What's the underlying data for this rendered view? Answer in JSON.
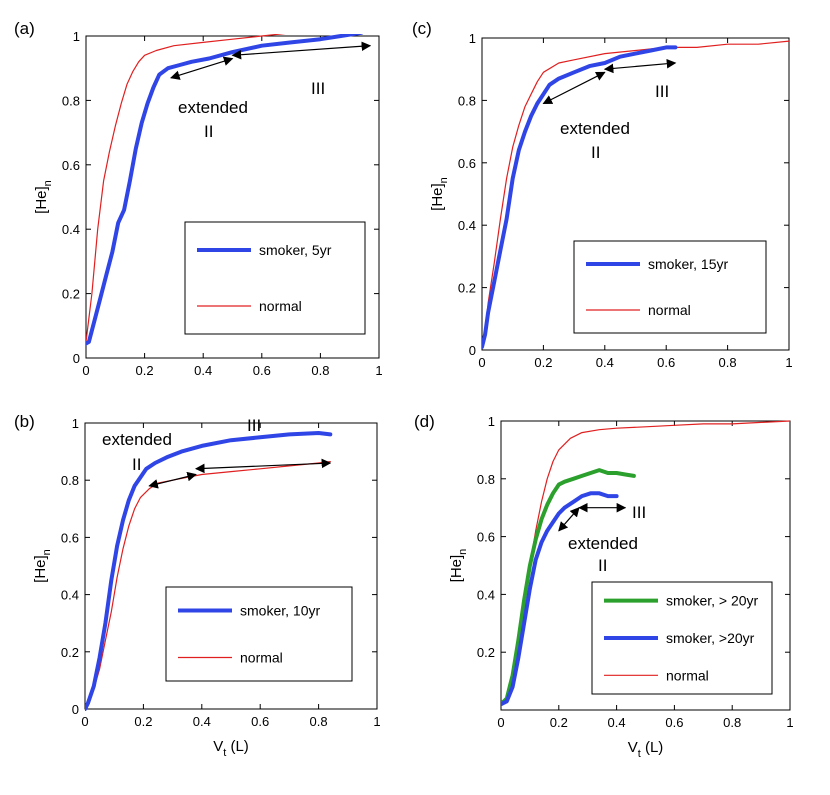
{
  "chart_data": [
    {
      "panel": "(a)",
      "type": "line",
      "xlim": [
        0,
        1
      ],
      "ylim": [
        0,
        1
      ],
      "xticks": [
        "0",
        "0.2",
        "0.4",
        "0.6",
        "0.8",
        "1"
      ],
      "yticks": [
        "0",
        "0.2",
        "0.4",
        "0.6",
        "0.8",
        "1"
      ],
      "ylabel_main": "[He]",
      "ylabel_sub": "n",
      "xlabel_main": "",
      "xlabel_sub": "",
      "legend": [
        "smoker, 5yr",
        "normal"
      ],
      "labels": {
        "extended": "extended",
        "phase2": "II",
        "phase3": "III"
      },
      "series": [
        {
          "name": "smoker, 5yr",
          "color": "#3045e6",
          "width": 4,
          "x": [
            -0.01,
            0.01,
            0.03,
            0.05,
            0.07,
            0.09,
            0.11,
            0.13,
            0.15,
            0.17,
            0.19,
            0.21,
            0.23,
            0.25,
            0.28,
            0.32,
            0.36,
            0.42,
            0.5,
            0.6,
            0.7,
            0.8,
            0.87,
            0.94
          ],
          "y": [
            0.04,
            0.05,
            0.12,
            0.19,
            0.26,
            0.33,
            0.42,
            0.46,
            0.55,
            0.65,
            0.73,
            0.79,
            0.84,
            0.88,
            0.9,
            0.91,
            0.92,
            0.93,
            0.95,
            0.97,
            0.98,
            0.99,
            1.0,
            1.01
          ]
        },
        {
          "name": "normal",
          "color": "#e02020",
          "width": 1.2,
          "x": [
            -0.01,
            0.0,
            0.02,
            0.04,
            0.06,
            0.08,
            0.1,
            0.12,
            0.14,
            0.16,
            0.18,
            0.2,
            0.24,
            0.3,
            0.4,
            0.5,
            0.6,
            0.7,
            0.8,
            0.9,
            1.0
          ],
          "y": [
            0.03,
            0.05,
            0.2,
            0.4,
            0.55,
            0.64,
            0.72,
            0.79,
            0.85,
            0.89,
            0.92,
            0.94,
            0.955,
            0.97,
            0.98,
            0.99,
            1.0,
            1.01,
            1.02,
            1.03,
            1.04
          ]
        }
      ],
      "arrows": [
        [
          0.29,
          0.87,
          0.5,
          0.93
        ],
        [
          0.5,
          0.94,
          0.97,
          0.97
        ]
      ]
    },
    {
      "panel": "(c)",
      "type": "line",
      "xlim": [
        0,
        1
      ],
      "ylim": [
        0,
        1
      ],
      "xticks": [
        "0",
        "0.2",
        "0.4",
        "0.6",
        "0.8",
        "1"
      ],
      "yticks": [
        "0",
        "0.2",
        "0.4",
        "0.6",
        "0.8",
        "1"
      ],
      "ylabel_main": "[He]",
      "ylabel_sub": "n",
      "xlabel_main": "",
      "xlabel_sub": "",
      "legend": [
        "smoker, 15yr",
        "normal"
      ],
      "labels": {
        "extended": "extended",
        "phase2": "II",
        "phase3": "III"
      },
      "series": [
        {
          "name": "smoker, 15yr",
          "color": "#3045e6",
          "width": 4,
          "x": [
            0.0,
            0.01,
            0.02,
            0.04,
            0.06,
            0.08,
            0.1,
            0.12,
            0.14,
            0.16,
            0.18,
            0.2,
            0.22,
            0.25,
            0.3,
            0.35,
            0.4,
            0.45,
            0.5,
            0.55,
            0.6,
            0.63
          ],
          "y": [
            0.01,
            0.05,
            0.12,
            0.22,
            0.32,
            0.42,
            0.55,
            0.64,
            0.7,
            0.75,
            0.79,
            0.82,
            0.85,
            0.87,
            0.89,
            0.91,
            0.92,
            0.94,
            0.95,
            0.96,
            0.97,
            0.97
          ]
        },
        {
          "name": "normal",
          "color": "#e02020",
          "width": 1.2,
          "x": [
            0.0,
            0.01,
            0.02,
            0.04,
            0.06,
            0.08,
            0.1,
            0.12,
            0.14,
            0.16,
            0.18,
            0.2,
            0.25,
            0.3,
            0.4,
            0.5,
            0.6,
            0.7,
            0.8,
            0.9,
            1.0
          ],
          "y": [
            0.01,
            0.06,
            0.15,
            0.28,
            0.42,
            0.55,
            0.65,
            0.72,
            0.78,
            0.82,
            0.86,
            0.89,
            0.92,
            0.93,
            0.95,
            0.96,
            0.97,
            0.97,
            0.98,
            0.98,
            0.99
          ]
        }
      ],
      "arrows": [
        [
          0.2,
          0.79,
          0.4,
          0.89
        ],
        [
          0.4,
          0.9,
          0.63,
          0.92
        ]
      ]
    },
    {
      "panel": "(b)",
      "type": "line",
      "xlim": [
        0,
        1
      ],
      "ylim": [
        0,
        1
      ],
      "xticks": [
        "0",
        "0.2",
        "0.4",
        "0.6",
        "0.8",
        "1"
      ],
      "yticks": [
        "0",
        "0.2",
        "0.4",
        "0.6",
        "0.8",
        "1"
      ],
      "ylabel_main": "[He]",
      "ylabel_sub": "n",
      "xlabel_main": "V",
      "xlabel_sub": "t",
      "xlabel_unit": " (L)",
      "legend": [
        "smoker, 10yr",
        "normal"
      ],
      "labels": {
        "extended": "extended",
        "phase2": "II",
        "phase3": "III"
      },
      "series": [
        {
          "name": "smoker, 10yr",
          "color": "#3045e6",
          "width": 4,
          "x": [
            0.0,
            0.01,
            0.03,
            0.05,
            0.07,
            0.09,
            0.11,
            0.13,
            0.15,
            0.17,
            0.19,
            0.21,
            0.24,
            0.28,
            0.33,
            0.4,
            0.5,
            0.6,
            0.7,
            0.8,
            0.84
          ],
          "y": [
            0.0,
            0.02,
            0.08,
            0.18,
            0.3,
            0.45,
            0.57,
            0.66,
            0.73,
            0.78,
            0.81,
            0.84,
            0.86,
            0.88,
            0.9,
            0.92,
            0.94,
            0.95,
            0.96,
            0.965,
            0.96
          ]
        },
        {
          "name": "normal",
          "color": "#e02020",
          "width": 1.2,
          "x": [
            0.0,
            0.01,
            0.03,
            0.05,
            0.07,
            0.09,
            0.11,
            0.13,
            0.15,
            0.17,
            0.19,
            0.22,
            0.25,
            0.3,
            0.35,
            0.4,
            0.5,
            0.6,
            0.7,
            0.8,
            0.84
          ],
          "y": [
            0.0,
            0.02,
            0.07,
            0.14,
            0.24,
            0.34,
            0.46,
            0.56,
            0.64,
            0.7,
            0.74,
            0.77,
            0.79,
            0.8,
            0.81,
            0.82,
            0.83,
            0.84,
            0.85,
            0.86,
            0.865
          ]
        }
      ],
      "arrows": [
        [
          0.22,
          0.78,
          0.38,
          0.82
        ],
        [
          0.38,
          0.84,
          0.84,
          0.86
        ]
      ]
    },
    {
      "panel": "(d)",
      "type": "line",
      "xlim": [
        0,
        1
      ],
      "ylim": [
        0,
        1
      ],
      "xticks": [
        "0",
        "0.2",
        "0.4",
        "0.6",
        "0.8",
        "1"
      ],
      "yticks": [
        "0.2",
        "0.4",
        "0.6",
        "0.8",
        "1"
      ],
      "ylabel_main": "[He]",
      "ylabel_sub": "n",
      "xlabel_main": "V",
      "xlabel_sub": "t",
      "xlabel_unit": " (L)",
      "legend": [
        "smoker, > 20yr",
        "smoker, >20yr",
        "normal"
      ],
      "labels": {
        "extended": "extended",
        "phase2": "II",
        "phase3": "III"
      },
      "series": [
        {
          "name": "smoker, > 20yr",
          "color": "#2ca02c",
          "width": 4,
          "x": [
            0.0,
            0.02,
            0.04,
            0.06,
            0.08,
            0.1,
            0.12,
            0.14,
            0.16,
            0.18,
            0.2,
            0.22,
            0.25,
            0.28,
            0.31,
            0.34,
            0.37,
            0.4,
            0.43,
            0.46
          ],
          "y": [
            0.02,
            0.04,
            0.12,
            0.24,
            0.38,
            0.5,
            0.59,
            0.66,
            0.71,
            0.75,
            0.78,
            0.79,
            0.8,
            0.81,
            0.82,
            0.83,
            0.82,
            0.82,
            0.815,
            0.81
          ]
        },
        {
          "name": "smoker, >20yr",
          "color": "#3045e6",
          "width": 4,
          "x": [
            0.0,
            0.02,
            0.04,
            0.06,
            0.08,
            0.1,
            0.12,
            0.14,
            0.16,
            0.18,
            0.2,
            0.22,
            0.25,
            0.28,
            0.31,
            0.34,
            0.37,
            0.4
          ],
          "y": [
            0.02,
            0.03,
            0.08,
            0.18,
            0.3,
            0.42,
            0.52,
            0.58,
            0.62,
            0.65,
            0.68,
            0.7,
            0.72,
            0.74,
            0.75,
            0.75,
            0.74,
            0.74
          ]
        },
        {
          "name": "normal",
          "color": "#e02020",
          "width": 1.2,
          "x": [
            0.0,
            0.02,
            0.04,
            0.06,
            0.08,
            0.1,
            0.12,
            0.14,
            0.16,
            0.18,
            0.2,
            0.24,
            0.28,
            0.34,
            0.4,
            0.5,
            0.6,
            0.7,
            0.8,
            0.9,
            1.0
          ],
          "y": [
            0.02,
            0.04,
            0.1,
            0.22,
            0.36,
            0.5,
            0.62,
            0.72,
            0.8,
            0.86,
            0.9,
            0.94,
            0.96,
            0.97,
            0.975,
            0.98,
            0.985,
            0.99,
            0.99,
            0.995,
            1.0
          ]
        }
      ],
      "arrows": [
        [
          0.2,
          0.62,
          0.27,
          0.7
        ],
        [
          0.27,
          0.7,
          0.43,
          0.7
        ]
      ]
    }
  ]
}
